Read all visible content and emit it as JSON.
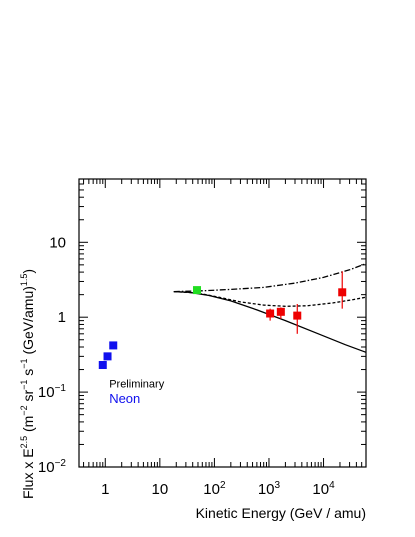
{
  "chart_data": {
    "type": "scatter",
    "xlabel": "Kinetic Energy (GeV / amu)",
    "ylabel_parts": [
      "Flux x E",
      "2.5",
      " (m",
      "−2",
      " sr",
      "−1",
      " s",
      "−1",
      " (GeV/amu)",
      "1.5",
      ")"
    ],
    "x_scale": "log",
    "y_scale": "log",
    "xlim": [
      0.33,
      60000
    ],
    "ylim": [
      0.01,
      70
    ],
    "x_ticks": [
      {
        "value": 1,
        "base": "1",
        "exp": ""
      },
      {
        "value": 10,
        "base": "10",
        "exp": ""
      },
      {
        "value": 100,
        "base": "10",
        "exp": "2"
      },
      {
        "value": 1000,
        "base": "10",
        "exp": "3"
      },
      {
        "value": 10000,
        "base": "10",
        "exp": "4"
      }
    ],
    "y_ticks": [
      {
        "value": 0.01,
        "base": "10",
        "exp": "−2"
      },
      {
        "value": 0.1,
        "base": "10",
        "exp": "−1"
      },
      {
        "value": 1,
        "base": "1",
        "exp": ""
      },
      {
        "value": 10,
        "base": "10",
        "exp": ""
      }
    ],
    "annotations": [
      {
        "text": "Preliminary",
        "x": 1.18,
        "y": 0.115,
        "color": "#000000",
        "size": 11
      },
      {
        "text": "Neon",
        "x": 1.18,
        "y": 0.072,
        "color": "#1010ee",
        "size": 13
      }
    ],
    "series": [
      {
        "color": "#1010ee",
        "points": [
          {
            "x": 0.9,
            "y": 0.23
          },
          {
            "x": 1.1,
            "y": 0.3
          },
          {
            "x": 1.4,
            "y": 0.42
          }
        ]
      },
      {
        "color": "#22dd22",
        "points": [
          {
            "x": 48,
            "y": 2.3
          }
        ]
      },
      {
        "color": "#ee0000",
        "points": [
          {
            "x": 1050,
            "y": 1.12,
            "ylo": 0.9,
            "yhi": 1.3
          },
          {
            "x": 1650,
            "y": 1.18,
            "ylo": 0.95,
            "yhi": 1.35
          },
          {
            "x": 3300,
            "y": 1.05,
            "ylo": 0.6,
            "yhi": 1.5
          },
          {
            "x": 22000,
            "y": 2.15,
            "ylo": 1.3,
            "yhi": 4.1
          }
        ]
      }
    ],
    "curves": [
      {
        "style": "solid",
        "points": [
          [
            18,
            2.2
          ],
          [
            35,
            2.15
          ],
          [
            80,
            1.95
          ],
          [
            200,
            1.65
          ],
          [
            600,
            1.25
          ],
          [
            2000,
            0.9
          ],
          [
            8000,
            0.6
          ],
          [
            25000,
            0.43
          ],
          [
            60000,
            0.34
          ]
        ]
      },
      {
        "style": "dashed",
        "points": [
          [
            18,
            2.2
          ],
          [
            50,
            2.1
          ],
          [
            120,
            1.85
          ],
          [
            300,
            1.6
          ],
          [
            800,
            1.45
          ],
          [
            2000,
            1.4
          ],
          [
            5000,
            1.42
          ],
          [
            15000,
            1.55
          ],
          [
            35000,
            1.72
          ],
          [
            60000,
            1.85
          ]
        ]
      },
      {
        "style": "dashdot",
        "points": [
          [
            18,
            2.2
          ],
          [
            60,
            2.25
          ],
          [
            200,
            2.35
          ],
          [
            800,
            2.5
          ],
          [
            3000,
            2.85
          ],
          [
            10000,
            3.4
          ],
          [
            30000,
            4.3
          ],
          [
            60000,
            5.2
          ]
        ]
      }
    ]
  }
}
